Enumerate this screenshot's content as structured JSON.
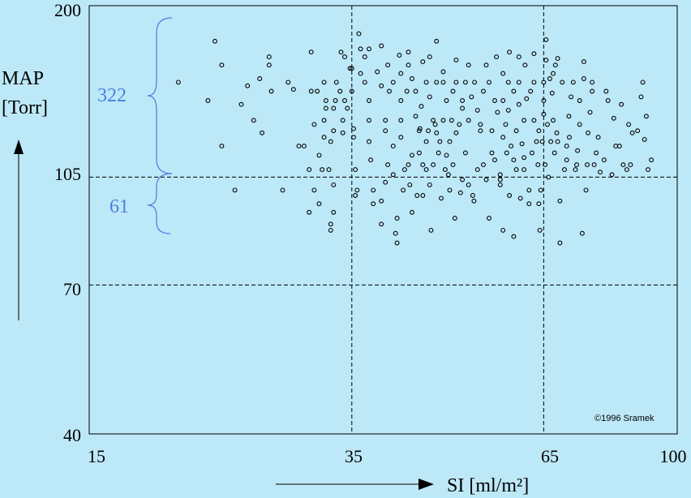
{
  "chart_data": {
    "type": "scatter",
    "title": "",
    "xlabel": "SI [ml/m²]",
    "ylabel_main": "MAP",
    "ylabel_unit": "[Torr]",
    "xscale": "log",
    "yscale": "log",
    "xlim": [
      15,
      100
    ],
    "ylim": [
      40,
      200
    ],
    "x_ticks": [
      "15",
      "35",
      "65",
      "100"
    ],
    "y_ticks": [
      "200",
      "105",
      "70",
      "40"
    ],
    "reference_lines": {
      "x": [
        35,
        65
      ],
      "y": [
        105,
        70
      ]
    },
    "grid": false,
    "annotations": {
      "above": "322",
      "below": "61"
    },
    "copyright": "©1996 Sramek",
    "colors": {
      "background": "#bde8f7",
      "points": "#000000",
      "annotation": "#4a7fe0"
    },
    "points": [
      [
        20.0,
        150
      ],
      [
        22.0,
        140
      ],
      [
        23.0,
        118
      ],
      [
        22.5,
        175
      ],
      [
        23.0,
        160
      ],
      [
        24.0,
        100
      ],
      [
        24.5,
        138
      ],
      [
        25.0,
        148
      ],
      [
        25.5,
        130
      ],
      [
        26.0,
        152
      ],
      [
        26.2,
        124
      ],
      [
        26.8,
        160
      ],
      [
        26.8,
        165
      ],
      [
        27.0,
        145
      ],
      [
        28.0,
        100
      ],
      [
        28.5,
        150
      ],
      [
        29.0,
        146
      ],
      [
        29.5,
        118
      ],
      [
        30.0,
        118
      ],
      [
        30.5,
        108
      ],
      [
        30.5,
        92
      ],
      [
        30.7,
        145
      ],
      [
        30.7,
        168
      ],
      [
        31.0,
        100
      ],
      [
        31.0,
        128
      ],
      [
        31.3,
        145
      ],
      [
        31.5,
        95
      ],
      [
        31.5,
        114
      ],
      [
        31.8,
        108
      ],
      [
        32.0,
        122
      ],
      [
        32.0,
        130
      ],
      [
        32.0,
        150
      ],
      [
        32.2,
        136
      ],
      [
        32.2,
        140
      ],
      [
        32.5,
        108
      ],
      [
        32.7,
        120
      ],
      [
        32.7,
        86
      ],
      [
        32.7,
        88
      ],
      [
        33.0,
        102
      ],
      [
        33.0,
        92
      ],
      [
        33.0,
        125
      ],
      [
        33.0,
        136
      ],
      [
        33.2,
        140
      ],
      [
        33.3,
        150
      ],
      [
        33.7,
        145
      ],
      [
        33.8,
        168
      ],
      [
        34.0,
        124
      ],
      [
        34.0,
        130
      ],
      [
        34.2,
        140
      ],
      [
        34.2,
        165
      ],
      [
        34.5,
        136
      ],
      [
        34.8,
        158
      ],
      [
        35.0,
        158
      ],
      [
        35.0,
        145
      ],
      [
        35.2,
        122
      ],
      [
        35.2,
        126
      ],
      [
        35.4,
        108
      ],
      [
        35.4,
        98
      ],
      [
        35.6,
        100
      ],
      [
        35.8,
        180
      ],
      [
        36.0,
        170
      ],
      [
        36.0,
        155
      ],
      [
        36.5,
        165
      ],
      [
        36.5,
        150
      ],
      [
        37.0,
        170
      ],
      [
        37.0,
        130
      ],
      [
        37.0,
        140
      ],
      [
        37.0,
        120
      ],
      [
        37.2,
        112
      ],
      [
        37.5,
        100
      ],
      [
        37.5,
        95
      ],
      [
        38.0,
        156
      ],
      [
        38.5,
        148
      ],
      [
        38.5,
        172
      ],
      [
        38.5,
        96
      ],
      [
        38.5,
        88
      ],
      [
        39.0,
        130
      ],
      [
        39.0,
        125
      ],
      [
        39.0,
        103
      ],
      [
        39.3,
        110
      ],
      [
        39.3,
        160
      ],
      [
        39.5,
        145
      ],
      [
        40.0,
        150
      ],
      [
        40.0,
        118
      ],
      [
        40.0,
        106
      ],
      [
        40.3,
        85
      ],
      [
        40.5,
        90
      ],
      [
        40.5,
        82
      ],
      [
        40.8,
        166
      ],
      [
        41.0,
        155
      ],
      [
        41.0,
        130
      ],
      [
        41.0,
        140
      ],
      [
        41.0,
        122
      ],
      [
        41.3,
        100
      ],
      [
        41.5,
        108
      ],
      [
        41.8,
        145
      ],
      [
        42.0,
        110
      ],
      [
        42.0,
        160
      ],
      [
        42.0,
        168
      ],
      [
        42.2,
        102
      ],
      [
        42.5,
        152
      ],
      [
        42.5,
        114
      ],
      [
        42.5,
        92
      ],
      [
        43.0,
        145
      ],
      [
        43.0,
        132
      ],
      [
        43.2,
        98
      ],
      [
        43.5,
        125
      ],
      [
        43.5,
        115
      ],
      [
        43.6,
        126
      ],
      [
        43.8,
        137
      ],
      [
        44.0,
        162
      ],
      [
        44.0,
        110
      ],
      [
        44.0,
        98
      ],
      [
        44.5,
        150
      ],
      [
        44.5,
        120
      ],
      [
        44.5,
        108
      ],
      [
        44.8,
        125
      ],
      [
        45.0,
        165
      ],
      [
        45.0,
        142
      ],
      [
        45.0,
        102
      ],
      [
        45.2,
        86
      ],
      [
        45.5,
        130
      ],
      [
        45.5,
        110
      ],
      [
        45.8,
        128
      ],
      [
        46.0,
        175
      ],
      [
        46.0,
        150
      ],
      [
        46.0,
        124
      ],
      [
        46.3,
        115
      ],
      [
        46.5,
        120
      ],
      [
        46.7,
        97
      ],
      [
        47.0,
        150
      ],
      [
        47.0,
        156
      ],
      [
        47.0,
        130
      ],
      [
        47.3,
        108
      ],
      [
        47.5,
        140
      ],
      [
        47.5,
        114
      ],
      [
        47.8,
        106
      ],
      [
        48.0,
        120
      ],
      [
        48.0,
        100
      ],
      [
        48.3,
        130
      ],
      [
        48.5,
        110
      ],
      [
        48.5,
        145
      ],
      [
        48.8,
        90
      ],
      [
        49.0,
        163
      ],
      [
        49.0,
        124
      ],
      [
        49.0,
        150
      ],
      [
        49.5,
        128
      ],
      [
        49.7,
        99
      ],
      [
        50.0,
        136
      ],
      [
        50.0,
        140
      ],
      [
        50.0,
        104
      ],
      [
        50.5,
        115
      ],
      [
        50.5,
        150
      ],
      [
        51.0,
        160
      ],
      [
        51.0,
        130
      ],
      [
        51.0,
        102
      ],
      [
        51.5,
        142
      ],
      [
        51.7,
        98
      ],
      [
        51.9,
        96
      ],
      [
        52.0,
        150
      ],
      [
        52.5,
        135
      ],
      [
        52.5,
        108
      ],
      [
        53.0,
        128
      ],
      [
        53.0,
        125
      ],
      [
        53.5,
        110
      ],
      [
        53.5,
        145
      ],
      [
        54.0,
        160
      ],
      [
        54.0,
        104
      ],
      [
        54.5,
        150
      ],
      [
        54.5,
        90
      ],
      [
        55.0,
        125
      ],
      [
        55.0,
        115
      ],
      [
        55.5,
        140
      ],
      [
        55.5,
        112
      ],
      [
        55.8,
        165
      ],
      [
        56.0,
        134
      ],
      [
        56.5,
        104
      ],
      [
        56.5,
        106
      ],
      [
        56.5,
        102
      ],
      [
        57.0,
        140
      ],
      [
        57.0,
        122
      ],
      [
        57.0,
        86
      ],
      [
        57.0,
        155
      ],
      [
        57.5,
        128
      ],
      [
        57.7,
        115
      ],
      [
        58.0,
        150
      ],
      [
        58.0,
        135
      ],
      [
        58.2,
        98
      ],
      [
        58.2,
        168
      ],
      [
        58.5,
        118
      ],
      [
        59.0,
        145
      ],
      [
        59.0,
        112
      ],
      [
        59.0,
        84
      ],
      [
        59.5,
        125
      ],
      [
        59.5,
        108
      ],
      [
        60.0,
        150
      ],
      [
        60.0,
        165
      ],
      [
        60.0,
        138
      ],
      [
        60.3,
        97
      ],
      [
        60.6,
        119
      ],
      [
        61.0,
        130
      ],
      [
        61.0,
        108
      ],
      [
        61.0,
        113
      ],
      [
        61.2,
        160
      ],
      [
        61.5,
        141
      ],
      [
        62.0,
        100
      ],
      [
        62.0,
        95
      ],
      [
        62.3,
        145
      ],
      [
        62.6,
        115
      ],
      [
        63.0,
        130
      ],
      [
        63.0,
        150
      ],
      [
        63.0,
        167
      ],
      [
        63.5,
        120
      ],
      [
        63.8,
        110
      ],
      [
        64.0,
        95
      ],
      [
        64.0,
        125
      ],
      [
        64.2,
        86
      ],
      [
        64.4,
        100
      ],
      [
        64.7,
        120
      ],
      [
        65.0,
        140
      ],
      [
        65.0,
        150
      ],
      [
        65.0,
        133
      ],
      [
        65.3,
        110
      ],
      [
        65.5,
        163
      ],
      [
        65.5,
        176
      ],
      [
        65.8,
        128
      ],
      [
        66.0,
        105
      ],
      [
        66.3,
        152
      ],
      [
        66.5,
        120
      ],
      [
        66.8,
        144
      ],
      [
        67.0,
        130
      ],
      [
        67.0,
        155
      ],
      [
        67.3,
        115
      ],
      [
        67.5,
        160
      ],
      [
        67.8,
        124
      ],
      [
        68.0,
        120
      ],
      [
        68.0,
        164
      ],
      [
        68.5,
        96
      ],
      [
        68.5,
        82
      ],
      [
        69.0,
        150
      ],
      [
        69.5,
        108
      ],
      [
        70.0,
        112
      ],
      [
        70.0,
        118
      ],
      [
        70.5,
        132
      ],
      [
        70.6,
        122
      ],
      [
        71.0,
        142
      ],
      [
        71.5,
        150
      ],
      [
        72.0,
        108
      ],
      [
        72.3,
        110
      ],
      [
        72.5,
        116
      ],
      [
        73.0,
        128
      ],
      [
        73.0,
        140
      ],
      [
        73.6,
        85
      ],
      [
        74.0,
        152
      ],
      [
        74.0,
        162
      ],
      [
        74.5,
        100
      ],
      [
        74.8,
        110
      ],
      [
        75.0,
        124
      ],
      [
        75.5,
        134
      ],
      [
        76.0,
        145
      ],
      [
        76.0,
        150
      ],
      [
        76.5,
        110
      ],
      [
        77.0,
        115
      ],
      [
        77.5,
        122
      ],
      [
        78.0,
        107
      ],
      [
        79.0,
        112
      ],
      [
        79.5,
        145
      ],
      [
        80.0,
        140
      ],
      [
        81.0,
        106
      ],
      [
        81.5,
        131
      ],
      [
        82.0,
        118
      ],
      [
        83.0,
        118
      ],
      [
        83.5,
        138
      ],
      [
        84.0,
        110
      ],
      [
        85.0,
        108
      ],
      [
        85.5,
        128
      ],
      [
        86.0,
        110
      ],
      [
        86.5,
        124
      ],
      [
        88.0,
        125
      ],
      [
        89.0,
        142
      ],
      [
        89.5,
        150
      ],
      [
        90.0,
        121
      ],
      [
        90.5,
        132
      ],
      [
        91.0,
        108
      ],
      [
        92.0,
        112
      ]
    ]
  }
}
